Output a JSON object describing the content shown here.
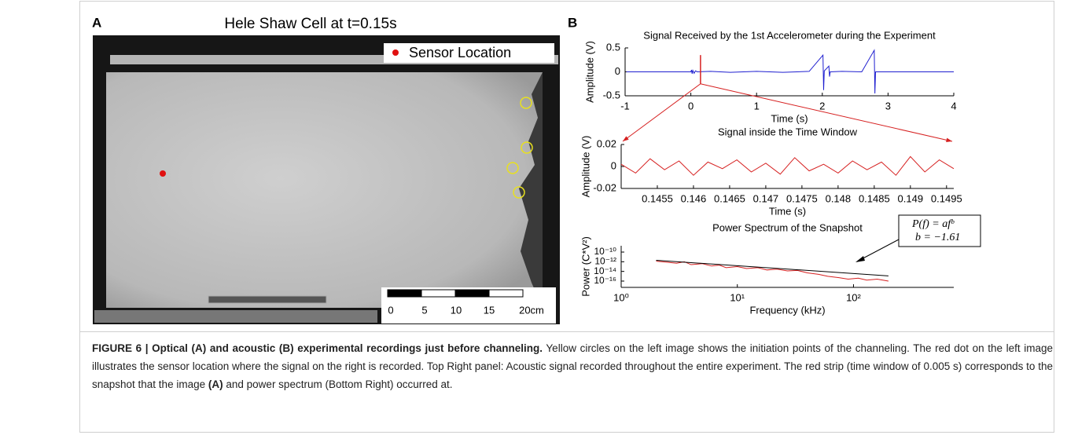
{
  "panel_a": {
    "label": "A",
    "title": "Hele Shaw Cell at t=0.15s",
    "legend": "Sensor Location",
    "scale_labels": [
      "0",
      "5",
      "10",
      "15",
      "20cm"
    ]
  },
  "panel_b_label": "B",
  "chart_data": [
    {
      "type": "line",
      "title": "Signal Received by the 1st Accelerometer during the Experiment",
      "xlabel": "Time (s)",
      "ylabel": "Amplitude (V)",
      "xlim": [
        -1,
        4
      ],
      "xticks": [
        -1,
        0,
        1,
        2,
        3,
        4
      ],
      "ylim": [
        -0.5,
        0.5
      ],
      "yticks": [
        -0.5,
        0,
        0.5
      ],
      "series": [
        {
          "color": "#1f1fd0",
          "x": [
            -0.98,
            0,
            0.01,
            0.02,
            0.03,
            0.05,
            0.07,
            0.1,
            0.3,
            0.6,
            1,
            1.4,
            1.8,
            2.01,
            2.02,
            2.03,
            2.1,
            2.11,
            2.12,
            2.3,
            2.6,
            2.79,
            2.8,
            2.81,
            3.2,
            3.6,
            4
          ],
          "values": [
            0,
            0,
            0.04,
            -0.04,
            0.03,
            -0.03,
            0.02,
            0,
            0.01,
            -0.01,
            0.01,
            -0.01,
            0.01,
            0.35,
            -0.38,
            0.02,
            0.12,
            -0.1,
            0,
            0.01,
            0,
            0.45,
            -0.45,
            0,
            0,
            0,
            0
          ]
        }
      ],
      "highlight": {
        "x": 0.147,
        "ymin": -0.25,
        "ymax": 0.35,
        "color": "#d62020"
      }
    },
    {
      "type": "line",
      "title": "Signal inside the Time Window",
      "xlabel": "Time (s)",
      "ylabel": "Amplitude (V)",
      "xlim": [
        0.145,
        0.1496
      ],
      "xticks": [
        0.1455,
        0.146,
        0.1465,
        0.147,
        0.1475,
        0.148,
        0.1485,
        0.149,
        0.1495
      ],
      "ylim": [
        -0.02,
        0.02
      ],
      "yticks": [
        -0.02,
        0,
        0.02
      ],
      "series": [
        {
          "color": "#d62020",
          "x": [
            0.145,
            0.1452,
            0.1454,
            0.1456,
            0.1458,
            0.146,
            0.1462,
            0.1464,
            0.1466,
            0.1468,
            0.147,
            0.1472,
            0.1474,
            0.1476,
            0.1478,
            0.148,
            0.1482,
            0.1484,
            0.1486,
            0.1488,
            0.149,
            0.1492,
            0.1494,
            0.1496
          ],
          "values": [
            0.002,
            -0.006,
            0.007,
            -0.003,
            0.005,
            -0.008,
            0.004,
            -0.002,
            0.006,
            -0.005,
            0.003,
            -0.007,
            0.008,
            -0.004,
            0.002,
            -0.006,
            0.005,
            -0.003,
            0.004,
            -0.008,
            0.009,
            -0.005,
            0.006,
            -0.002
          ]
        }
      ]
    },
    {
      "type": "line",
      "title": "Power Spectrum of the Snapshot",
      "xlabel": "Frequency (kHz)",
      "ylabel": "Power (C*V²)",
      "xscale": "log",
      "yscale": "log",
      "xlim": [
        1,
        730
      ],
      "xticks": [
        {
          "value": 1,
          "label": "10⁰"
        },
        {
          "value": 10,
          "label": "10¹"
        },
        {
          "value": 100,
          "label": "10²"
        }
      ],
      "ylim": [
        5e-18,
        2e-09
      ],
      "yticks": [
        {
          "value": 1e-10,
          "label": "10⁻¹⁰"
        },
        {
          "value": 1e-12,
          "label": "10⁻¹²"
        },
        {
          "value": 1e-14,
          "label": "10⁻¹⁴"
        },
        {
          "value": 1e-16,
          "label": "10⁻¹⁶"
        }
      ],
      "series": [
        {
          "color": "#d62020",
          "x": [
            2,
            2.5,
            3,
            3.5,
            4,
            5,
            6,
            7,
            8,
            10,
            12,
            15,
            18,
            22,
            27,
            33,
            40,
            50,
            60,
            75,
            90,
            110,
            130,
            160,
            200
          ],
          "values": [
            1.3e-12,
            8e-13,
            5e-13,
            1e-12,
            2.5e-13,
            4e-13,
            1.3e-13,
            2e-13,
            6e-14,
            1e-13,
            4e-14,
            6e-14,
            2e-14,
            3e-14,
            1.3e-14,
            1.6e-14,
            5e-15,
            2.5e-15,
            1e-15,
            5e-16,
            2.5e-16,
            4e-16,
            1.6e-16,
            2.5e-16,
            1e-16
          ]
        }
      ],
      "fit": {
        "color": "#000000",
        "x": [
          2,
          200
        ],
        "values": [
          2e-12,
          1.2e-15
        ]
      },
      "annotation": [
        "P(f) = afᵇ",
        "b = −1.61"
      ]
    }
  ],
  "caption": {
    "label": "FIGURE 6 |",
    "heading": "Optical (A) and acoustic (B) experimental recordings just before channeling.",
    "text_1": "Yellow circles on the left image shows the initiation points of the channeling. The red dot on the left image illustrates the sensor location where the signal on the right is recorded. Top Right panel: Acoustic signal recorded throughout the entire experiment. The red strip (time window of 0.005 s) corresponds to the snapshot that the image",
    "bold": "(A)",
    "text_2": "and power spectrum (Bottom Right) occurred at."
  }
}
